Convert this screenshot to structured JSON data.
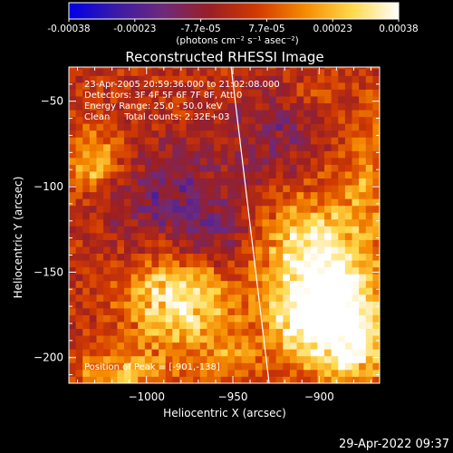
{
  "chart_data": {
    "type": "heatmap",
    "title": "Reconstructed RHESSI Image",
    "xlabel": "Heliocentric X (arcsec)",
    "ylabel": "Heliocentric Y (arcsec)",
    "xlim": [
      -1045,
      -865
    ],
    "ylim": [
      -215,
      -30
    ],
    "xticks": [
      -1000,
      -950,
      -900
    ],
    "yticks": [
      -50,
      -100,
      -150,
      -200
    ],
    "colorbar": {
      "ticks": [
        "-0.00038",
        "-0.00023",
        "-7.7e-05",
        "7.7e-05",
        "0.00023",
        "0.00038"
      ],
      "range": [
        -0.00038,
        0.00038
      ],
      "unit_label": "(photons cm⁻² s⁻¹ asec⁻²)",
      "colors": [
        "#0000e8",
        "#3a1aa8",
        "#6e2a7a",
        "#9a1f24",
        "#d23a00",
        "#f58a00",
        "#ffd84a",
        "#ffffff"
      ]
    },
    "annotations": [
      "23-Apr-2005 20:59:36.000 to 21:02:08.000",
      "Detectors: 3F 4F 5F 6F 7F 8F, Att 0",
      "Energy Range: 25.0 - 50.0 keV",
      "Clean     Total counts: 2.32E+03"
    ],
    "peak_label": "Position of Peak = [-901,-138]",
    "peak": [
      -901,
      -138
    ],
    "limb_line": [
      [
        -951,
        -30
      ],
      [
        -929,
        -215
      ]
    ],
    "sources": [
      {
        "x": -903,
        "y": -145,
        "sx": 20,
        "sy": 28,
        "amp": 0.00036
      },
      {
        "x": -902,
        "y": -182,
        "sx": 18,
        "sy": 16,
        "amp": 0.0003
      },
      {
        "x": -982,
        "y": -168,
        "sx": 20,
        "sy": 17,
        "amp": 0.00034
      },
      {
        "x": -1030,
        "y": -85,
        "sx": 12,
        "sy": 13,
        "amp": 0.00022
      },
      {
        "x": -1012,
        "y": -210,
        "sx": 22,
        "sy": 10,
        "amp": 0.00018
      },
      {
        "x": -878,
        "y": -190,
        "sx": 14,
        "sy": 26,
        "amp": 0.00024
      },
      {
        "x": -872,
        "y": -95,
        "sx": 10,
        "sy": 28,
        "amp": 0.00013
      },
      {
        "x": -952,
        "y": -200,
        "sx": 12,
        "sy": 10,
        "amp": 0.00015
      },
      {
        "x": -905,
        "y": -45,
        "sx": 12,
        "sy": 8,
        "amp": 8e-05
      }
    ],
    "background_level": 2e-05,
    "negative_patches": [
      {
        "x": -990,
        "y": -105,
        "sx": 26,
        "sy": 20,
        "amp": -0.00016
      },
      {
        "x": -925,
        "y": -70,
        "sx": 20,
        "sy": 22,
        "amp": -0.00014
      },
      {
        "x": -960,
        "y": -130,
        "sx": 14,
        "sy": 14,
        "amp": -0.0001
      }
    ]
  },
  "footer": {
    "timestamp": "29-Apr-2022 09:37"
  }
}
